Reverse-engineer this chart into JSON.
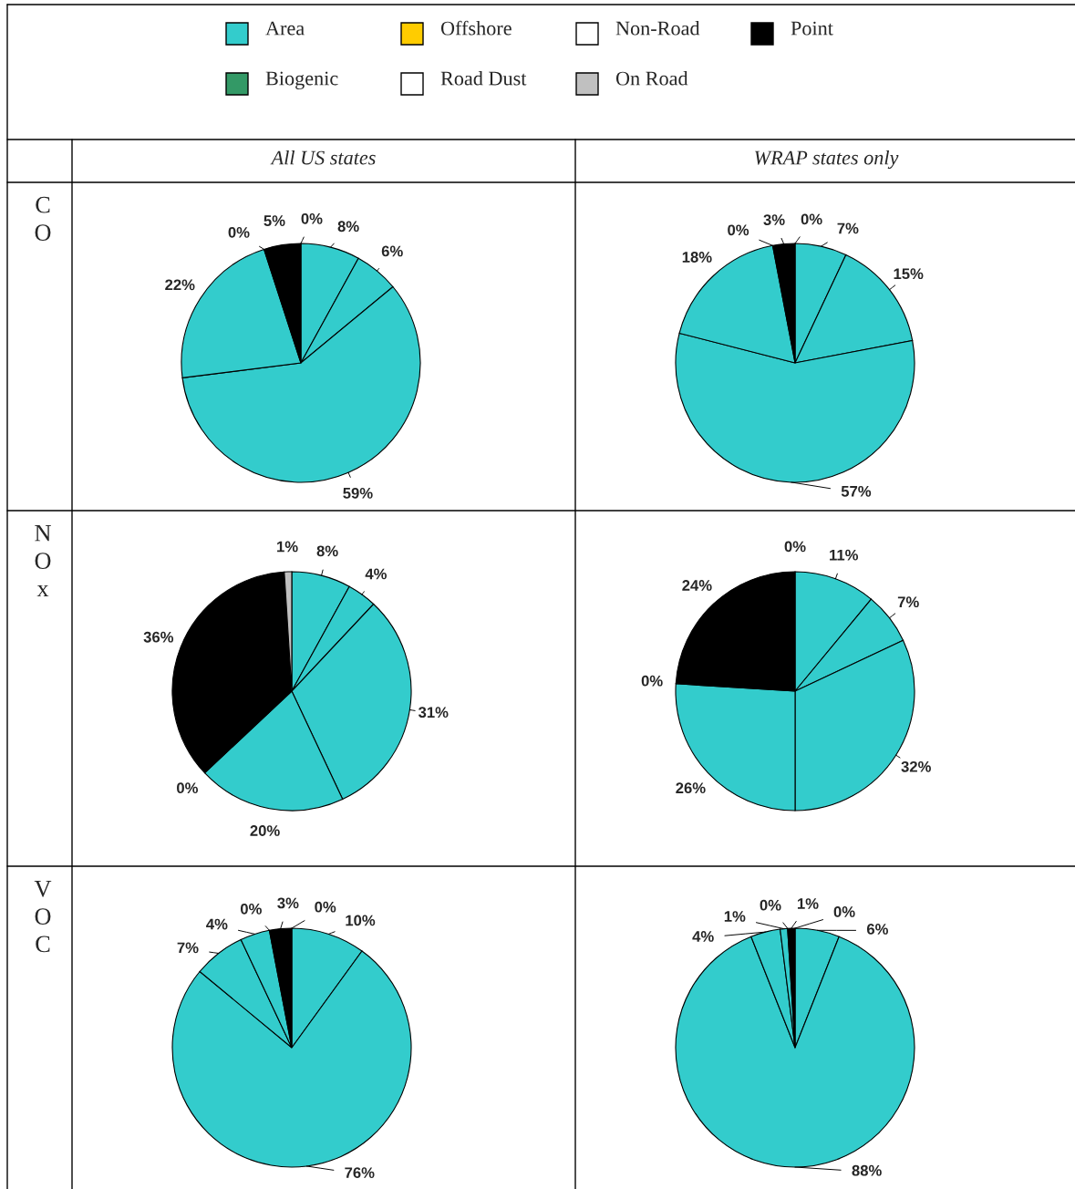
{
  "chart_data": [
    {
      "type": "other",
      "categories": [
        "Area",
        "Offshore",
        "Non-Road",
        "Point",
        "Biogenic",
        "Road Dust",
        "On Road"
      ],
      "colors": [
        "#33cccc",
        "#ffcc00",
        "#ffffff",
        "#000000",
        "#339966",
        "#ffffff",
        "#c0c0c0"
      ]
    },
    {
      "type": "pie",
      "title": "All US states",
      "ylabel": "CO",
      "categories": [
        null,
        null,
        null,
        null,
        null,
        null,
        null
      ],
      "values": [
        8,
        6,
        59,
        22,
        0,
        5,
        0
      ],
      "value_labels": [
        "8%",
        "6%",
        "59%",
        "22%",
        "0%",
        "5%",
        "0%"
      ],
      "colors": [
        "#33cccc",
        "#33cccc",
        "#33cccc",
        "#33cccc",
        "#33cccc",
        "#000000",
        "#c0c0c0"
      ]
    },
    {
      "type": "pie",
      "title": "WRAP states only",
      "categories": [
        null,
        null,
        null,
        null,
        null,
        null,
        null
      ],
      "values": [
        7,
        15,
        57,
        18,
        0,
        3,
        0
      ],
      "value_labels": [
        "7%",
        "15%",
        "57%",
        "18%",
        "0%",
        "3%",
        "0%"
      ],
      "colors": [
        "#33cccc",
        "#33cccc",
        "#33cccc",
        "#33cccc",
        "#33cccc",
        "#000000",
        "#c0c0c0"
      ]
    },
    {
      "type": "pie",
      "ylabel": "NOx",
      "categories": [
        null,
        null,
        null,
        null,
        null,
        null,
        null
      ],
      "values": [
        8,
        4,
        31,
        20,
        0,
        36,
        1
      ],
      "value_labels": [
        "8%",
        "4%",
        "31%",
        "20%",
        "0%",
        "36%",
        "1%"
      ],
      "colors": [
        "#33cccc",
        "#33cccc",
        "#33cccc",
        "#33cccc",
        "#33cccc",
        "#000000",
        "#c0c0c0"
      ]
    },
    {
      "type": "pie",
      "categories": [
        null,
        null,
        null,
        null,
        null,
        null,
        null
      ],
      "values": [
        11,
        7,
        32,
        26,
        0,
        24,
        0
      ],
      "value_labels": [
        "11%",
        "7%",
        "32%",
        "26%",
        "0%",
        "24%",
        "0%"
      ],
      "colors": [
        "#33cccc",
        "#33cccc",
        "#33cccc",
        "#33cccc",
        "#33cccc",
        "#000000",
        "#c0c0c0"
      ]
    },
    {
      "type": "pie",
      "ylabel": "VOC",
      "categories": [
        null,
        null,
        null,
        null,
        null,
        null,
        null
      ],
      "values": [
        10,
        76,
        7,
        4,
        0,
        3,
        0
      ],
      "value_labels": [
        "10%",
        "76%",
        "7%",
        "4%",
        "0%",
        "3%",
        "0%"
      ],
      "colors": [
        "#33cccc",
        "#33cccc",
        "#33cccc",
        "#33cccc",
        "#33cccc",
        "#000000",
        "#c0c0c0"
      ]
    },
    {
      "type": "pie",
      "categories": [
        null,
        null,
        null,
        null,
        null,
        null,
        null
      ],
      "values": [
        6,
        88,
        4,
        1,
        0,
        1,
        0
      ],
      "value_labels": [
        "6%",
        "88%",
        "4%",
        "1%",
        "0%",
        "1%",
        "0%"
      ],
      "colors": [
        "#33cccc",
        "#33cccc",
        "#33cccc",
        "#33cccc",
        "#33cccc",
        "#000000",
        "#c0c0c0"
      ]
    }
  ]
}
